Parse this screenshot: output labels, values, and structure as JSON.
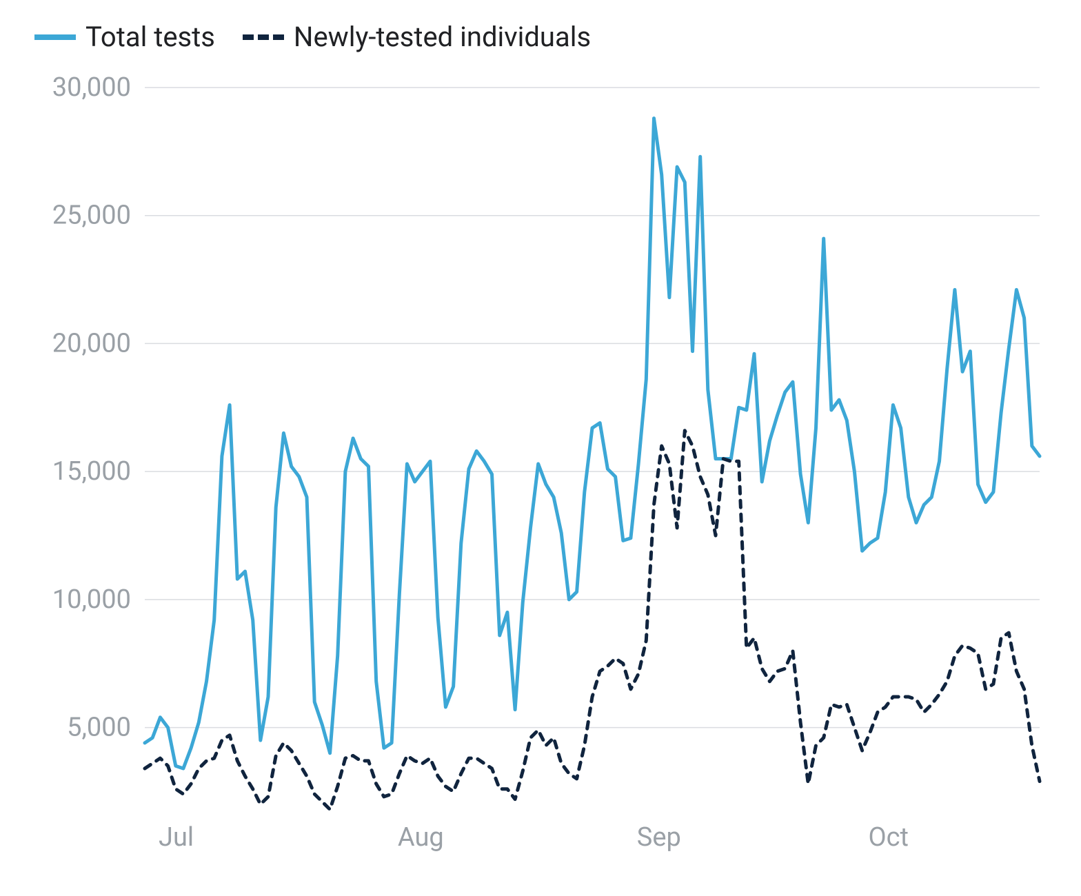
{
  "chart": {
    "type": "line",
    "background_color": "#ffffff",
    "grid_color": "#dadce0",
    "axis_label_color": "#9aa0a6",
    "legend_text_color": "#202124",
    "label_fontsize": 38,
    "legend_fontsize": 40,
    "line_width": 5,
    "ylim": [
      2000,
      30000
    ],
    "yticks": [
      5000,
      10000,
      15000,
      20000,
      25000,
      30000
    ],
    "ytick_labels": [
      "5,000",
      "10,000",
      "15,000",
      "20,000",
      "25,000",
      "30,000"
    ],
    "x_points": 117,
    "x_month_starts": {
      "Jul": 0,
      "Aug": 31,
      "Sep": 62,
      "Oct": 92
    },
    "xtick_labels": [
      "Jul",
      "Aug",
      "Sep",
      "Oct"
    ],
    "series": [
      {
        "name": "Total tests",
        "label": "Total tests",
        "color": "#3ca7d6",
        "dash": "none",
        "values": [
          4400,
          4600,
          5400,
          5000,
          3500,
          3400,
          4200,
          5200,
          6800,
          9200,
          15600,
          17600,
          10800,
          11100,
          9200,
          4500,
          6200,
          13600,
          16500,
          15200,
          14800,
          14000,
          6000,
          5100,
          4000,
          7800,
          15000,
          16300,
          15500,
          15200,
          6800,
          4200,
          4400,
          10200,
          15300,
          14600,
          15000,
          15400,
          9300,
          5800,
          6600,
          12200,
          15100,
          15800,
          15400,
          14900,
          8600,
          9500,
          5700,
          9900,
          12800,
          15300,
          14500,
          14000,
          12600,
          10000,
          10300,
          14200,
          16700,
          16900,
          15100,
          14800,
          12300,
          12400,
          15300,
          18600,
          28800,
          26600,
          21800,
          26900,
          26300,
          19700,
          27300,
          18200,
          15500,
          15500,
          15500,
          17500,
          17400,
          19600,
          14600,
          16200,
          17200,
          18100,
          18500,
          14900,
          13000,
          16700,
          24100,
          17400,
          17800,
          17000,
          15000,
          11900,
          12200,
          12400,
          14200,
          17600,
          16700,
          14000,
          13000,
          13700,
          14000,
          15400,
          19000,
          22100,
          18900,
          19700,
          14500,
          13800,
          14200,
          17300,
          19800,
          22100,
          21000,
          16000,
          15600
        ]
      },
      {
        "name": "Newly-tested individuals",
        "label": "Newly-tested individuals",
        "color": "#10243e",
        "dash": "10,10",
        "values": [
          3400,
          3600,
          3800,
          3500,
          2600,
          2400,
          2800,
          3400,
          3700,
          3800,
          4500,
          4700,
          3700,
          3100,
          2600,
          2000,
          2300,
          3900,
          4400,
          4100,
          3600,
          3100,
          2400,
          2100,
          1800,
          2700,
          3800,
          3900,
          3700,
          3700,
          2800,
          2300,
          2400,
          3200,
          3900,
          3700,
          3600,
          3800,
          3100,
          2700,
          2500,
          3200,
          3800,
          3800,
          3600,
          3400,
          2600,
          2600,
          2200,
          3300,
          4600,
          4900,
          4300,
          4600,
          3600,
          3200,
          3000,
          4300,
          6200,
          7200,
          7400,
          7700,
          7500,
          6500,
          7100,
          8400,
          13700,
          16000,
          15300,
          12800,
          16600,
          16000,
          14800,
          14100,
          12500,
          15500,
          15400,
          15400,
          8100,
          8500,
          7300,
          6800,
          7200,
          7300,
          8000,
          5200,
          2800,
          4300,
          4600,
          5900,
          5800,
          5900,
          5000,
          4100,
          4800,
          5600,
          5800,
          6200,
          6200,
          6200,
          6100,
          5600,
          5900,
          6300,
          6800,
          7800,
          8200,
          8100,
          7900,
          6500,
          6700,
          8500,
          8700,
          7200,
          6500,
          4300,
          2900
        ]
      }
    ]
  }
}
